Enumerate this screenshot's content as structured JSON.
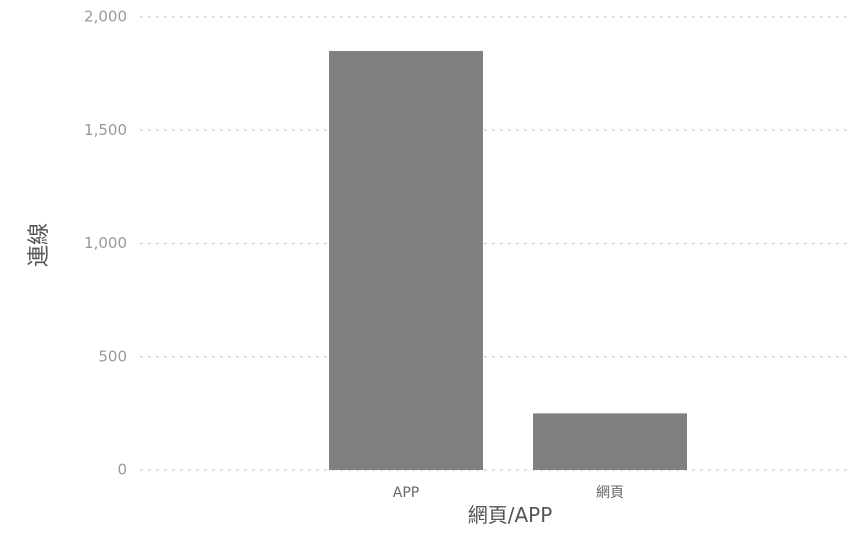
{
  "chart_data": {
    "type": "bar",
    "categories": [
      "APP",
      "網頁"
    ],
    "values": [
      1850,
      250
    ],
    "xlabel": "網頁/APP",
    "ylabel": "連線",
    "ylim": [
      0,
      2000
    ],
    "yticks": [
      0,
      500,
      1000,
      1500,
      2000
    ],
    "ytick_labels": [
      "0",
      "500",
      "1,000",
      "1,500",
      "2,000"
    ],
    "grid": true,
    "legend": "none",
    "colors": {
      "bar": "#808080",
      "grid": "#d6d6d6",
      "tick_text": "#9a9a9a",
      "category_text": "#666666",
      "axis_title_text": "#555555"
    }
  }
}
